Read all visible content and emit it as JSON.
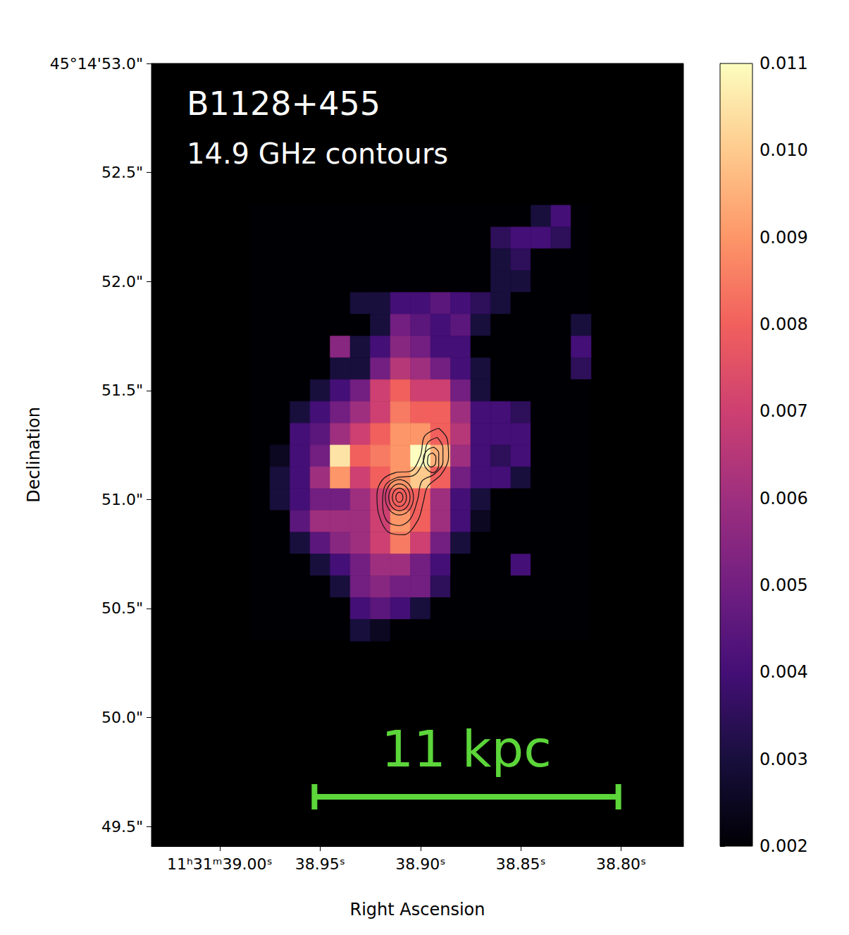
{
  "chart_data": {
    "type": "heatmap",
    "title": "B1128+455",
    "subtitle": "14.9 GHz contours",
    "x_label": "Right Ascension",
    "y_label": "Declination",
    "grid": false,
    "xlim": [
      39.034,
      38.769
    ],
    "xticks": [
      {
        "value": 39.0,
        "label": "11ʰ31ᵐ39.00ˢ"
      },
      {
        "value": 38.95,
        "label": "38.95ˢ"
      },
      {
        "value": 38.9,
        "label": "38.90ˢ"
      },
      {
        "value": 38.85,
        "label": "38.85ˢ"
      },
      {
        "value": 38.8,
        "label": "38.80ˢ"
      }
    ],
    "ylim": [
      49.41,
      53.0
    ],
    "yticks": [
      {
        "value": 49.5,
        "label": "49.5\""
      },
      {
        "value": 50.0,
        "label": "50.0\""
      },
      {
        "value": 50.5,
        "label": "50.5\""
      },
      {
        "value": 51.0,
        "label": "51.0\""
      },
      {
        "value": 51.5,
        "label": "51.5\""
      },
      {
        "value": 52.0,
        "label": "52.0\""
      },
      {
        "value": 52.5,
        "label": "52.5\""
      },
      {
        "value": 53.0,
        "label": "45°14'53.0\""
      }
    ],
    "cells": {
      "ra": [
        38.98,
        38.97,
        38.96,
        38.95,
        38.94,
        38.93,
        38.92,
        38.91,
        38.9,
        38.89,
        38.88,
        38.87,
        38.86,
        38.85,
        38.84,
        38.83,
        38.82
      ],
      "dec": [
        52.3,
        52.2,
        52.1,
        52.0,
        51.9,
        51.8,
        51.7,
        51.6,
        51.5,
        51.4,
        51.3,
        51.2,
        51.1,
        51.0,
        50.9,
        50.8,
        50.7,
        50.6,
        50.5,
        50.4
      ],
      "values": [
        [
          0.002,
          0.002,
          0.002,
          0.002,
          0.002,
          0.002,
          0.002,
          0.002,
          0.002,
          0.002,
          0.002,
          0.002,
          0.002,
          0.002,
          0.003,
          0.004,
          0.002
        ],
        [
          0.002,
          0.002,
          0.002,
          0.002,
          0.002,
          0.002,
          0.002,
          0.002,
          0.002,
          0.002,
          0.002,
          0.002,
          0.0035,
          0.004,
          0.004,
          0.0035,
          0.002
        ],
        [
          0.002,
          0.002,
          0.002,
          0.002,
          0.002,
          0.002,
          0.002,
          0.002,
          0.002,
          0.002,
          0.002,
          0.002,
          0.003,
          0.0035,
          0.002,
          0.002,
          0.002
        ],
        [
          0.002,
          0.002,
          0.002,
          0.002,
          0.002,
          0.002,
          0.002,
          0.002,
          0.002,
          0.002,
          0.002,
          0.002,
          0.003,
          0.003,
          0.002,
          0.002,
          0.002
        ],
        [
          0.002,
          0.002,
          0.002,
          0.002,
          0.002,
          0.003,
          0.003,
          0.004,
          0.004,
          0.0045,
          0.004,
          0.0035,
          0.003,
          0.002,
          0.002,
          0.002,
          0.002
        ],
        [
          0.002,
          0.002,
          0.002,
          0.002,
          0.002,
          0.002,
          0.003,
          0.005,
          0.0045,
          0.004,
          0.0045,
          0.003,
          0.002,
          0.002,
          0.002,
          0.002,
          0.003
        ],
        [
          0.002,
          0.002,
          0.002,
          0.002,
          0.0055,
          0.003,
          0.004,
          0.0055,
          0.005,
          0.004,
          0.004,
          0.002,
          0.002,
          0.002,
          0.002,
          0.002,
          0.004
        ],
        [
          0.002,
          0.002,
          0.002,
          0.002,
          0.003,
          0.003,
          0.005,
          0.0065,
          0.006,
          0.005,
          0.004,
          0.003,
          0.002,
          0.002,
          0.002,
          0.002,
          0.0035
        ],
        [
          0.002,
          0.002,
          0.002,
          0.003,
          0.004,
          0.005,
          0.007,
          0.008,
          0.007,
          0.007,
          0.005,
          0.003,
          0.002,
          0.002,
          0.002,
          0.002,
          0.002
        ],
        [
          0.002,
          0.002,
          0.003,
          0.004,
          0.005,
          0.006,
          0.007,
          0.0085,
          0.008,
          0.008,
          0.006,
          0.004,
          0.004,
          0.0035,
          0.002,
          0.002,
          0.002
        ],
        [
          0.002,
          0.002,
          0.004,
          0.0045,
          0.006,
          0.007,
          0.008,
          0.009,
          0.009,
          0.008,
          0.0065,
          0.004,
          0.004,
          0.004,
          0.002,
          0.002,
          0.002
        ],
        [
          0.002,
          0.0025,
          0.004,
          0.005,
          0.0105,
          0.008,
          0.0085,
          0.009,
          0.011,
          0.0095,
          0.006,
          0.004,
          0.0035,
          0.004,
          0.002,
          0.002,
          0.002
        ],
        [
          0.002,
          0.003,
          0.004,
          0.006,
          0.009,
          0.007,
          0.008,
          0.009,
          0.01,
          0.008,
          0.005,
          0.004,
          0.004,
          0.003,
          0.002,
          0.002,
          0.002
        ],
        [
          0.002,
          0.003,
          0.004,
          0.005,
          0.005,
          0.006,
          0.007,
          0.008,
          0.008,
          0.006,
          0.004,
          0.003,
          0.002,
          0.002,
          0.002,
          0.002,
          0.002
        ],
        [
          0.002,
          0.002,
          0.0045,
          0.006,
          0.006,
          0.006,
          0.007,
          0.009,
          0.008,
          0.006,
          0.004,
          0.0025,
          0.002,
          0.002,
          0.002,
          0.002,
          0.002
        ],
        [
          0.002,
          0.002,
          0.003,
          0.0045,
          0.0055,
          0.006,
          0.007,
          0.0085,
          0.007,
          0.005,
          0.003,
          0.002,
          0.002,
          0.002,
          0.002,
          0.002,
          0.002
        ],
        [
          0.002,
          0.002,
          0.002,
          0.003,
          0.004,
          0.005,
          0.006,
          0.006,
          0.005,
          0.004,
          0.002,
          0.002,
          0.002,
          0.004,
          0.002,
          0.002,
          0.002
        ],
        [
          0.002,
          0.002,
          0.002,
          0.002,
          0.003,
          0.005,
          0.0055,
          0.005,
          0.005,
          0.0035,
          0.002,
          0.002,
          0.002,
          0.002,
          0.002,
          0.002,
          0.002
        ],
        [
          0.002,
          0.002,
          0.002,
          0.002,
          0.002,
          0.004,
          0.0045,
          0.004,
          0.003,
          0.002,
          0.002,
          0.002,
          0.002,
          0.002,
          0.002,
          0.002,
          0.002
        ],
        [
          0.002,
          0.002,
          0.002,
          0.002,
          0.002,
          0.003,
          0.0025,
          0.002,
          0.002,
          0.002,
          0.002,
          0.002,
          0.002,
          0.002,
          0.002,
          0.002,
          0.002
        ]
      ]
    },
    "colorbar": {
      "range": [
        0.002,
        0.011
      ],
      "ticks": [
        0.002,
        0.003,
        0.004,
        0.005,
        0.006,
        0.007,
        0.008,
        0.009,
        {
          "value": 0.01,
          "label": "0.010"
        },
        0.011
      ]
    },
    "contours": {
      "ellipses": [
        {
          "ra": 38.9105,
          "dec": 51.01,
          "ra_radius": 0.00175,
          "dec_radius": 0.0227
        },
        {
          "ra": 38.9105,
          "dec": 51.01,
          "ra_radius": 0.0035,
          "dec_radius": 0.042
        },
        {
          "ra": 38.9105,
          "dec": 51.01,
          "ra_radius": 0.0053,
          "dec_radius": 0.0615
        },
        {
          "ra": 38.9105,
          "dec": 51.01,
          "ra_radius": 0.007,
          "dec_radius": 0.081
        }
      ],
      "paths": [
        [
          [
            38.8909,
            51.327
          ],
          [
            38.8867,
            51.278
          ],
          [
            38.886,
            51.194
          ],
          [
            38.8895,
            51.117
          ],
          [
            38.8965,
            51.058
          ],
          [
            38.8986,
            50.987
          ],
          [
            38.9014,
            50.903
          ],
          [
            38.9084,
            50.838
          ],
          [
            38.9161,
            50.851
          ],
          [
            38.9207,
            50.929
          ],
          [
            38.9217,
            51.02
          ],
          [
            38.9189,
            51.091
          ],
          [
            38.9126,
            51.123
          ],
          [
            38.9049,
            51.13
          ],
          [
            38.9,
            51.201
          ],
          [
            38.8979,
            51.291
          ]
        ],
        [
          [
            38.8916,
            51.285
          ],
          [
            38.8888,
            51.236
          ],
          [
            38.8888,
            51.172
          ],
          [
            38.893,
            51.117
          ],
          [
            38.8993,
            51.084
          ],
          [
            38.9014,
            51.0
          ],
          [
            38.9049,
            50.913
          ],
          [
            38.9105,
            50.88
          ],
          [
            38.9168,
            50.903
          ],
          [
            38.9189,
            50.987
          ],
          [
            38.9175,
            51.065
          ],
          [
            38.9119,
            51.1
          ],
          [
            38.9035,
            51.11
          ],
          [
            38.8986,
            51.175
          ],
          [
            38.8965,
            51.259
          ]
        ],
        [
          [
            38.8933,
            51.24
          ],
          [
            38.8909,
            51.214
          ],
          [
            38.8909,
            51.155
          ],
          [
            38.8937,
            51.123
          ],
          [
            38.8972,
            51.143
          ],
          [
            38.8986,
            51.188
          ],
          [
            38.8965,
            51.227
          ]
        ],
        [
          [
            38.894,
            51.214
          ],
          [
            38.8923,
            51.194
          ],
          [
            38.8926,
            51.162
          ],
          [
            38.8947,
            51.149
          ],
          [
            38.8965,
            51.168
          ],
          [
            38.8961,
            51.201
          ]
        ]
      ]
    },
    "scale_bar": {
      "label": "11 kpc",
      "length": 1.395
    }
  }
}
